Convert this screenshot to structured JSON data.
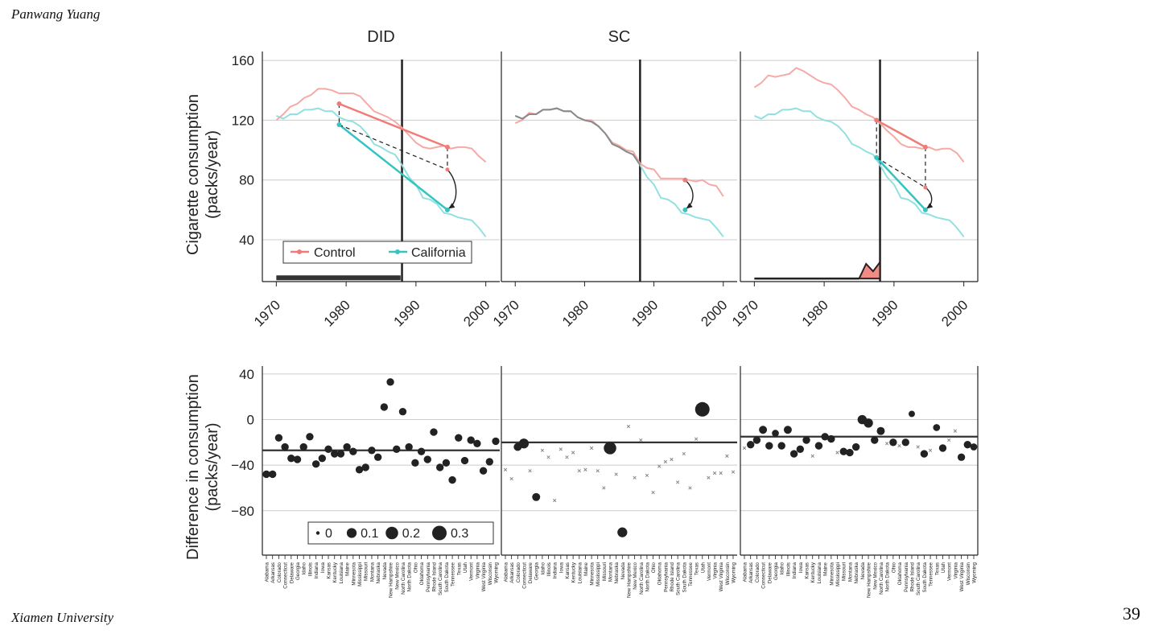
{
  "slide": {
    "author": "Panwang Yuang",
    "institution": "Xiamen University",
    "page_number": "39"
  },
  "colors": {
    "control": "#f07c78",
    "control_light": "#f6aaa6",
    "california": "#35c4c2",
    "california_light": "#93e0e0",
    "grid": "#cccccc",
    "axis": "#222222",
    "weight_fill": "#f28a86"
  },
  "chart_data": [
    {
      "id": "top",
      "type": "line",
      "panels": [
        "DID",
        "SC",
        ""
      ],
      "ylabel": [
        "Cigarette consumption",
        "(packs/year)"
      ],
      "xlim": [
        1968,
        2002
      ],
      "ylim": [
        12,
        166
      ],
      "xticks": [
        1970,
        1980,
        1990,
        2000
      ],
      "yticks": [
        40,
        80,
        120,
        160
      ],
      "treatment_year": 1988,
      "legend": [
        "Control",
        "California"
      ],
      "years": [
        1970,
        1971,
        1972,
        1973,
        1974,
        1975,
        1976,
        1977,
        1978,
        1979,
        1980,
        1981,
        1982,
        1983,
        1984,
        1985,
        1986,
        1987,
        1988,
        1989,
        1990,
        1991,
        1992,
        1993,
        1994,
        1995,
        1996,
        1997,
        1998,
        1999,
        2000
      ],
      "series": [
        {
          "name": "California",
          "values": [
            123,
            121,
            124,
            124,
            127,
            127,
            128,
            126,
            126,
            122,
            120,
            119,
            116,
            111,
            104,
            102,
            99,
            97,
            90,
            82,
            77,
            68,
            67,
            64,
            58,
            57,
            55,
            54,
            53,
            48,
            42
          ]
        },
        {
          "name": "Control",
          "panel": "DID",
          "values": [
            120,
            124,
            129,
            131,
            135,
            137,
            141,
            141,
            140,
            138,
            138,
            138,
            136,
            131,
            126,
            124,
            122,
            119,
            115,
            110,
            105,
            102,
            101,
            102,
            103,
            101,
            102,
            102,
            101,
            96,
            92
          ]
        },
        {
          "name": "Control",
          "panel": "SC",
          "values": [
            118,
            120,
            125,
            124,
            127,
            127,
            128,
            126,
            126,
            122,
            120,
            120,
            116,
            111,
            105,
            103,
            100,
            99,
            91,
            88,
            87,
            81,
            81,
            81,
            81,
            80,
            79,
            80,
            77,
            76,
            69
          ]
        },
        {
          "name": "Control",
          "panel": "3",
          "values": [
            142,
            145,
            150,
            149,
            150,
            151,
            155,
            153,
            150,
            147,
            145,
            144,
            140,
            135,
            129,
            127,
            124,
            122,
            118,
            113,
            109,
            104,
            102,
            102,
            101,
            102,
            100,
            101,
            101,
            98,
            92
          ]
        }
      ],
      "annotations": {
        "DID": {
          "control_pts": [
            [
              1979,
              131
            ],
            [
              1994.5,
              102
            ]
          ],
          "california_pts": [
            [
              1979,
              117
            ],
            [
              1994.5,
              60
            ]
          ],
          "counterfactual": [
            1994.5,
            87
          ]
        },
        "SC": {
          "control_pt": [
            1994.5,
            80
          ],
          "california_pt": [
            1994.5,
            60
          ]
        },
        "3": {
          "control_pts": [
            [
              1987.5,
              120
            ],
            [
              1994.5,
              102
            ]
          ],
          "california_pts": [
            [
              1987.5,
              95
            ],
            [
              1994.5,
              60
            ]
          ],
          "counterfactual": [
            1994.5,
            75
          ]
        }
      },
      "time_weights": {
        "DID": [
          [
            1970,
            1
          ],
          [
            1987.8,
            1
          ]
        ],
        "3": [
          [
            1970,
            1
          ],
          [
            1985,
            1
          ],
          [
            1986,
            9
          ],
          [
            1987,
            5
          ],
          [
            1988,
            10
          ]
        ]
      }
    },
    {
      "id": "bottom",
      "type": "scatter",
      "ylabel": [
        "Difference in consumption",
        "(packs/year)"
      ],
      "ylim": [
        -119,
        47
      ],
      "yticks": [
        40,
        0,
        -40,
        -80
      ],
      "size_legend": [
        "0",
        "0.1",
        "0.2",
        "0.3"
      ],
      "states": [
        "Alabama",
        "Arkansas",
        "Colorado",
        "Connecticut",
        "Delaware",
        "Georgia",
        "Idaho",
        "Illinois",
        "Indiana",
        "Iowa",
        "Kansas",
        "Kentucky",
        "Louisiana",
        "Maine",
        "Minnesota",
        "Mississippi",
        "Missouri",
        "Montana",
        "Nebraska",
        "Nevada",
        "New Hampshire",
        "New Mexico",
        "North Carolina",
        "North Dakota",
        "Ohio",
        "Oklahoma",
        "Pennsylvania",
        "Rhode Island",
        "South Carolina",
        "South Dakota",
        "Tennessee",
        "Texas",
        "Utah",
        "Vermont",
        "Virginia",
        "West Virginia",
        "Wisconsin",
        "Wyoming"
      ],
      "panels": [
        {
          "estimate": -27,
          "values": [
            -48,
            -48,
            -16,
            -24,
            -34,
            -35,
            -24,
            -15,
            -39,
            -34,
            -26,
            -30,
            -30,
            -24,
            -28,
            -44,
            -42,
            -27,
            -33,
            11,
            33,
            -26,
            7,
            -24,
            -38,
            -28,
            -35,
            -11,
            -42,
            -38,
            -53,
            -16,
            -36,
            -18,
            -21,
            -45,
            -37,
            -19
          ],
          "weights": [
            0.04,
            0.04,
            0.04,
            0.04,
            0.04,
            0.04,
            0.04,
            0.04,
            0.04,
            0.04,
            0.04,
            0.04,
            0.04,
            0.04,
            0.04,
            0.04,
            0.04,
            0.04,
            0.04,
            0.04,
            0.04,
            0.04,
            0.04,
            0.04,
            0.04,
            0.04,
            0.04,
            0.04,
            0.04,
            0.04,
            0.04,
            0.04,
            0.04,
            0.04,
            0.04,
            0.04,
            0.04,
            0.04
          ]
        },
        {
          "estimate": -20,
          "values": [
            -44,
            -52,
            -24,
            -21,
            -45,
            -68,
            -27,
            -33,
            -71,
            -26,
            -33,
            -29,
            -45,
            -44,
            -25,
            -45,
            -60,
            -25,
            -48,
            -99,
            -6,
            -51,
            -18,
            -49,
            -64,
            -41,
            -37,
            -35,
            -55,
            -30,
            -60,
            -17,
            9,
            -51,
            -47,
            -47,
            -32,
            -46
          ],
          "weights": [
            0,
            0,
            0.05,
            0.1,
            0,
            0.05,
            0,
            0,
            0,
            0,
            0,
            0,
            0,
            0,
            0,
            0,
            0,
            0.2,
            0,
            0.1,
            0,
            0,
            0,
            0,
            0,
            0,
            0,
            0,
            0,
            0,
            0,
            0,
            0.3,
            0,
            0,
            0,
            0,
            0
          ]
        },
        {
          "estimate": -15,
          "values": [
            -25,
            -22,
            -18,
            -9,
            -23,
            -12,
            -23,
            -9,
            -30,
            -26,
            -18,
            -32,
            -23,
            -15,
            -17,
            -29,
            -28,
            -29,
            -24,
            0,
            -3,
            -18,
            -10,
            -21,
            -20,
            -23,
            -20,
            5,
            -24,
            -30,
            -27,
            -7,
            -25,
            -18,
            -10,
            -33,
            -22,
            -24
          ],
          "weights": [
            0,
            0.04,
            0.04,
            0.05,
            0.04,
            0.03,
            0.04,
            0.05,
            0.04,
            0.04,
            0.04,
            0,
            0.04,
            0.04,
            0.04,
            0,
            0.04,
            0.04,
            0.04,
            0.08,
            0.08,
            0.04,
            0.05,
            0,
            0.04,
            0,
            0.04,
            0.02,
            0,
            0.04,
            0,
            0.03,
            0.04,
            0,
            0,
            0.04,
            0.04,
            0.03
          ]
        }
      ]
    }
  ]
}
